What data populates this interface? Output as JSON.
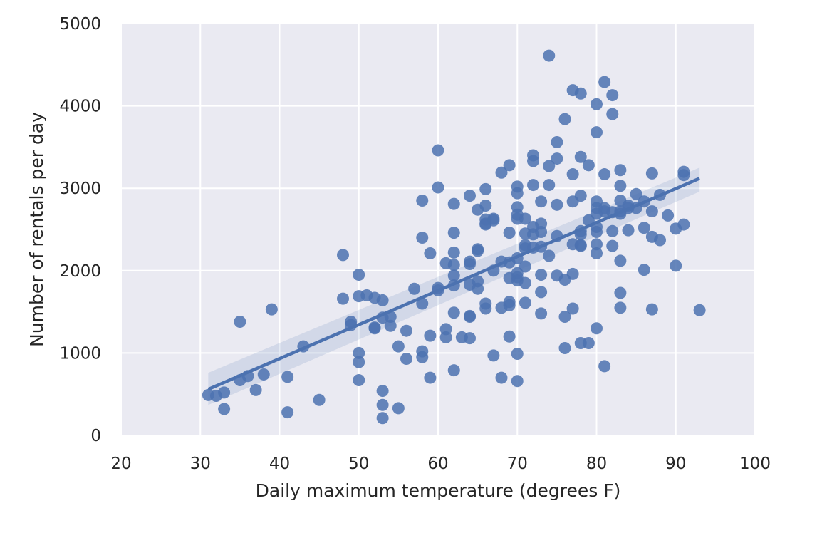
{
  "chart_data": {
    "type": "scatter",
    "title": "",
    "xlabel": "Daily maximum temperature (degrees F)",
    "ylabel": "Number of rentals per day",
    "xlim": [
      20,
      100
    ],
    "ylim": [
      0,
      5000
    ],
    "xticks": [
      "20",
      "30",
      "40",
      "50",
      "60",
      "70",
      "80",
      "90",
      "100"
    ],
    "yticks": [
      "0",
      "1000",
      "2000",
      "3000",
      "4000",
      "5000"
    ],
    "grid": true,
    "colors": {
      "background": "#eaeaf2",
      "grid": "#ffffff",
      "points": "#4c72b0",
      "text": "#262626"
    },
    "series": [
      {
        "points": [
          [
            31,
            490
          ],
          [
            32,
            480
          ],
          [
            33,
            320
          ],
          [
            33,
            520
          ],
          [
            35,
            670
          ],
          [
            35,
            1380
          ],
          [
            36,
            720
          ],
          [
            37,
            550
          ],
          [
            38,
            740
          ],
          [
            39,
            1530
          ],
          [
            41,
            280
          ],
          [
            41,
            710
          ],
          [
            43,
            1080
          ],
          [
            45,
            430
          ],
          [
            48,
            2190
          ],
          [
            48,
            1660
          ],
          [
            49,
            1380
          ],
          [
            49,
            1340
          ],
          [
            50,
            1950
          ],
          [
            50,
            1690
          ],
          [
            50,
            1000
          ],
          [
            50,
            890
          ],
          [
            50,
            670
          ],
          [
            51,
            1700
          ],
          [
            52,
            1670
          ],
          [
            52,
            1310
          ],
          [
            52,
            1300
          ],
          [
            53,
            1640
          ],
          [
            53,
            1430
          ],
          [
            53,
            540
          ],
          [
            53,
            370
          ],
          [
            53,
            210
          ],
          [
            54,
            1440
          ],
          [
            54,
            1330
          ],
          [
            55,
            1080
          ],
          [
            55,
            330
          ],
          [
            56,
            1270
          ],
          [
            56,
            930
          ],
          [
            57,
            1780
          ],
          [
            58,
            2850
          ],
          [
            58,
            2400
          ],
          [
            58,
            1600
          ],
          [
            58,
            1020
          ],
          [
            58,
            950
          ],
          [
            59,
            2210
          ],
          [
            59,
            1210
          ],
          [
            59,
            700
          ],
          [
            60,
            3460
          ],
          [
            60,
            3010
          ],
          [
            60,
            1790
          ],
          [
            60,
            1760
          ],
          [
            61,
            2090
          ],
          [
            61,
            1290
          ],
          [
            61,
            1190
          ],
          [
            62,
            2810
          ],
          [
            62,
            2460
          ],
          [
            62,
            2220
          ],
          [
            62,
            2070
          ],
          [
            62,
            1940
          ],
          [
            62,
            1820
          ],
          [
            62,
            1490
          ],
          [
            62,
            790
          ],
          [
            63,
            1190
          ],
          [
            64,
            2910
          ],
          [
            64,
            2110
          ],
          [
            64,
            2080
          ],
          [
            64,
            1830
          ],
          [
            64,
            1450
          ],
          [
            64,
            1440
          ],
          [
            64,
            1180
          ],
          [
            65,
            2740
          ],
          [
            65,
            2260
          ],
          [
            65,
            2240
          ],
          [
            65,
            1870
          ],
          [
            65,
            1780
          ],
          [
            66,
            2990
          ],
          [
            66,
            2790
          ],
          [
            66,
            2620
          ],
          [
            66,
            2570
          ],
          [
            66,
            2560
          ],
          [
            66,
            1600
          ],
          [
            66,
            1540
          ],
          [
            67,
            2630
          ],
          [
            67,
            2610
          ],
          [
            67,
            2000
          ],
          [
            67,
            970
          ],
          [
            68,
            3190
          ],
          [
            68,
            2110
          ],
          [
            68,
            1550
          ],
          [
            68,
            700
          ],
          [
            69,
            3280
          ],
          [
            69,
            2460
          ],
          [
            69,
            2100
          ],
          [
            69,
            1910
          ],
          [
            69,
            1620
          ],
          [
            69,
            1580
          ],
          [
            69,
            1200
          ],
          [
            70,
            3020
          ],
          [
            70,
            2940
          ],
          [
            70,
            2770
          ],
          [
            70,
            2680
          ],
          [
            70,
            2630
          ],
          [
            70,
            2150
          ],
          [
            70,
            1970
          ],
          [
            70,
            1920
          ],
          [
            70,
            1880
          ],
          [
            70,
            990
          ],
          [
            70,
            660
          ],
          [
            71,
            2630
          ],
          [
            71,
            2450
          ],
          [
            71,
            2310
          ],
          [
            71,
            2270
          ],
          [
            71,
            2050
          ],
          [
            71,
            1850
          ],
          [
            71,
            1610
          ],
          [
            72,
            3400
          ],
          [
            72,
            3330
          ],
          [
            72,
            3040
          ],
          [
            72,
            2530
          ],
          [
            72,
            2440
          ],
          [
            72,
            2280
          ],
          [
            73,
            2840
          ],
          [
            73,
            2570
          ],
          [
            73,
            2470
          ],
          [
            73,
            2290
          ],
          [
            73,
            1950
          ],
          [
            73,
            1740
          ],
          [
            73,
            1480
          ],
          [
            74,
            4610
          ],
          [
            74,
            3270
          ],
          [
            74,
            3040
          ],
          [
            74,
            2180
          ],
          [
            75,
            3560
          ],
          [
            75,
            3360
          ],
          [
            75,
            2800
          ],
          [
            75,
            2420
          ],
          [
            75,
            1940
          ],
          [
            76,
            3840
          ],
          [
            76,
            1890
          ],
          [
            76,
            1440
          ],
          [
            76,
            1060
          ],
          [
            77,
            4190
          ],
          [
            77,
            3170
          ],
          [
            77,
            2840
          ],
          [
            77,
            2320
          ],
          [
            77,
            1960
          ],
          [
            77,
            1540
          ],
          [
            78,
            4150
          ],
          [
            78,
            3380
          ],
          [
            78,
            2910
          ],
          [
            78,
            2480
          ],
          [
            78,
            2440
          ],
          [
            78,
            2310
          ],
          [
            78,
            2300
          ],
          [
            78,
            1120
          ],
          [
            79,
            3280
          ],
          [
            79,
            2610
          ],
          [
            79,
            1120
          ],
          [
            80,
            4020
          ],
          [
            80,
            3680
          ],
          [
            80,
            2840
          ],
          [
            80,
            2760
          ],
          [
            80,
            2690
          ],
          [
            80,
            2530
          ],
          [
            80,
            2470
          ],
          [
            80,
            2320
          ],
          [
            80,
            2210
          ],
          [
            80,
            1300
          ],
          [
            81,
            4290
          ],
          [
            81,
            3170
          ],
          [
            81,
            2760
          ],
          [
            81,
            2720
          ],
          [
            81,
            840
          ],
          [
            82,
            4130
          ],
          [
            82,
            3900
          ],
          [
            82,
            2710
          ],
          [
            82,
            2480
          ],
          [
            82,
            2300
          ],
          [
            83,
            3220
          ],
          [
            83,
            3030
          ],
          [
            83,
            2850
          ],
          [
            83,
            2720
          ],
          [
            83,
            2690
          ],
          [
            83,
            2120
          ],
          [
            83,
            1730
          ],
          [
            83,
            1550
          ],
          [
            84,
            2790
          ],
          [
            84,
            2760
          ],
          [
            84,
            2490
          ],
          [
            85,
            2930
          ],
          [
            85,
            2760
          ],
          [
            86,
            2840
          ],
          [
            86,
            2520
          ],
          [
            86,
            2010
          ],
          [
            87,
            3180
          ],
          [
            87,
            2720
          ],
          [
            87,
            2410
          ],
          [
            87,
            1530
          ],
          [
            88,
            2920
          ],
          [
            88,
            2370
          ],
          [
            89,
            2670
          ],
          [
            90,
            2510
          ],
          [
            90,
            2060
          ],
          [
            91,
            3200
          ],
          [
            91,
            3160
          ],
          [
            91,
            2560
          ],
          [
            93,
            1520
          ]
        ]
      }
    ],
    "trendline": {
      "x": [
        31,
        93
      ],
      "y": [
        560,
        3120
      ],
      "ci_low": [
        370,
        2960
      ],
      "ci_high": [
        760,
        3250
      ]
    }
  }
}
